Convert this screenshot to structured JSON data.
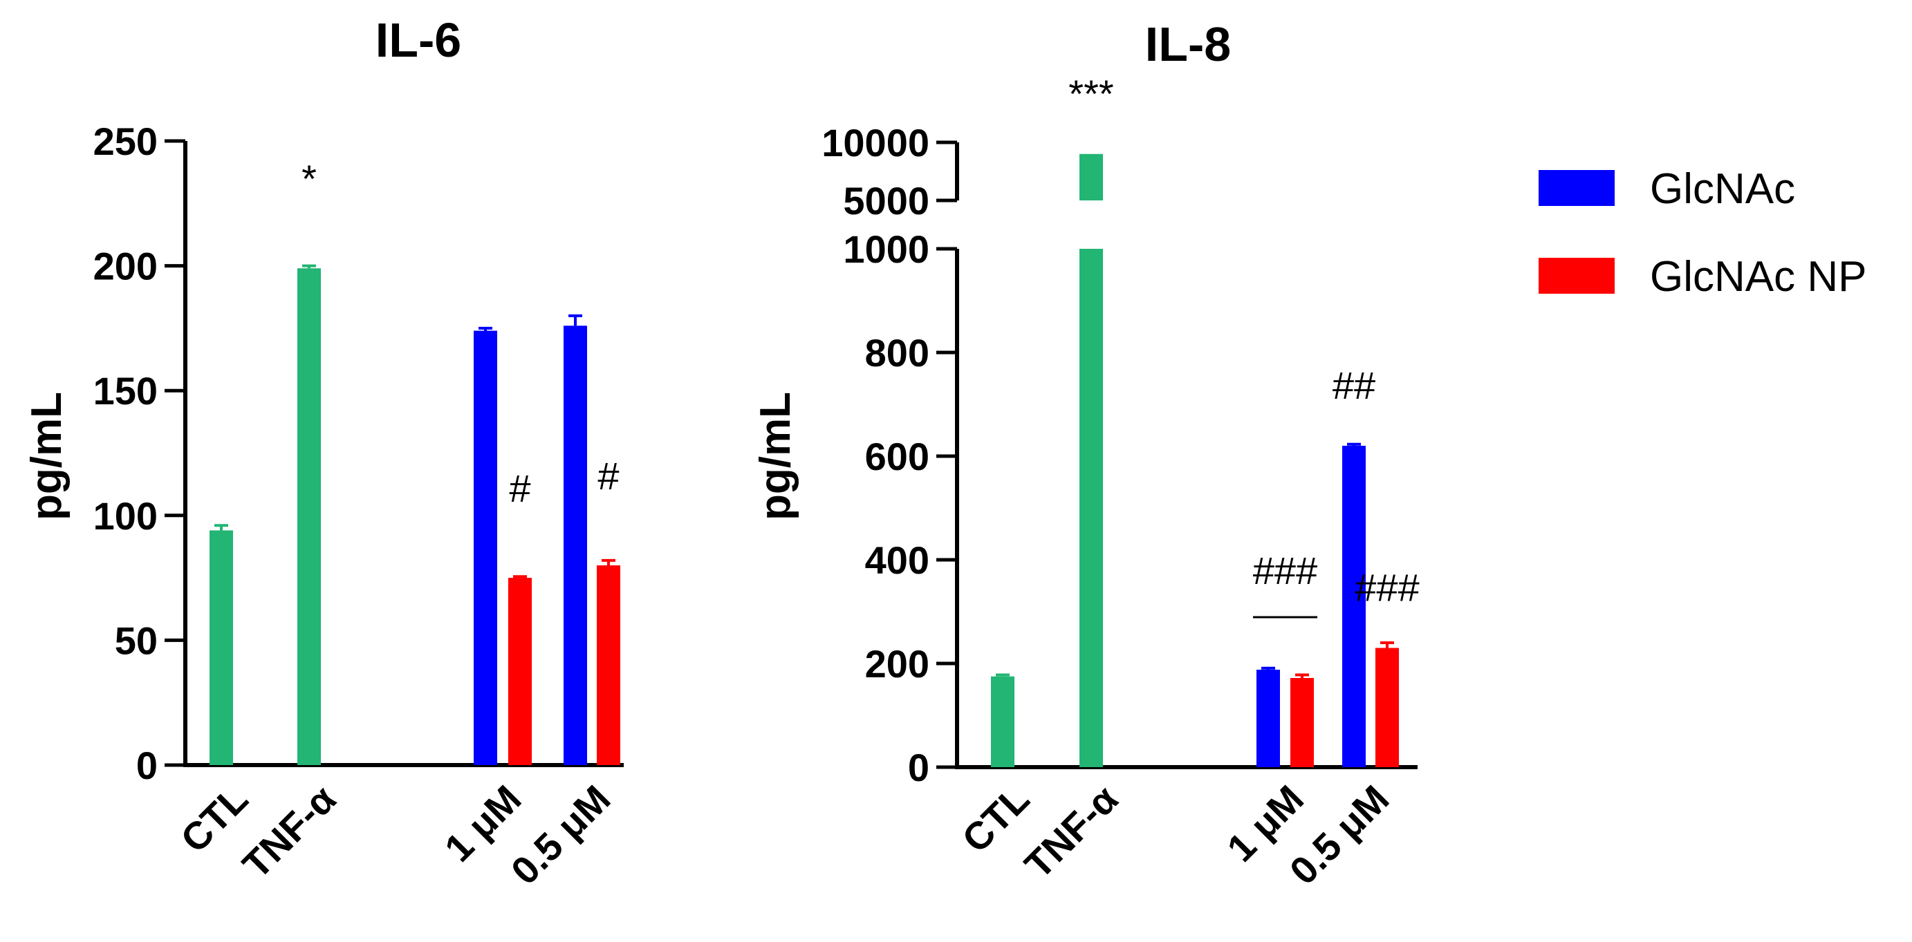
{
  "colors": {
    "control": "#22b573",
    "glcnac": "#0000ff",
    "glcnac_np": "#ff0000",
    "axis": "#000000"
  },
  "legend": {
    "items": [
      {
        "label": "GlcNAc",
        "color": "#0000ff"
      },
      {
        "label": "GlcNAc NP",
        "color": "#ff0000"
      }
    ],
    "placement": "right"
  },
  "chart_data": [
    {
      "type": "bar",
      "title": "IL-6",
      "ylabel": "pg/mL",
      "xlabel": "",
      "ylim": [
        0,
        250
      ],
      "yticks": [
        "0",
        "50",
        "100",
        "150",
        "200",
        "250"
      ],
      "categories": [
        "CTL",
        "TNF-α",
        "1 μM",
        "0.5 μM"
      ],
      "series": [
        {
          "name": "Control",
          "color": "#22b573",
          "values": [
            94,
            199,
            null,
            null
          ],
          "errors": [
            2,
            1,
            null,
            null
          ]
        },
        {
          "name": "GlcNAc",
          "color": "#0000ff",
          "values": [
            null,
            null,
            174,
            176
          ],
          "errors": [
            null,
            null,
            1,
            4
          ]
        },
        {
          "name": "GlcNAc NP",
          "color": "#ff0000",
          "values": [
            null,
            null,
            75,
            80
          ],
          "errors": [
            null,
            null,
            0.5,
            2
          ]
        }
      ],
      "annotations": [
        {
          "text": "*",
          "category": "TNF-α",
          "series": "Control"
        },
        {
          "text": "#",
          "category": "1 μM",
          "series": "GlcNAc NP"
        },
        {
          "text": "#",
          "category": "0.5 μM",
          "series": "GlcNAc NP"
        }
      ]
    },
    {
      "type": "bar",
      "title": "IL-8",
      "ylabel": "pg/mL",
      "xlabel": "",
      "ylim": [
        0,
        10000
      ],
      "axis_break": {
        "from": 1000,
        "to": 5000
      },
      "yticks": [
        "0",
        "200",
        "400",
        "600",
        "800",
        "1000",
        "5000",
        "10000"
      ],
      "categories": [
        "CTL",
        "TNF-α",
        "1 μM",
        "0.5 μM"
      ],
      "series": [
        {
          "name": "Control",
          "color": "#22b573",
          "values": [
            175,
            9000,
            null,
            null
          ],
          "errors": [
            3,
            0,
            null,
            null
          ]
        },
        {
          "name": "GlcNAc",
          "color": "#0000ff",
          "values": [
            null,
            null,
            188,
            620
          ],
          "errors": [
            null,
            null,
            3,
            3
          ]
        },
        {
          "name": "GlcNAc NP",
          "color": "#ff0000",
          "values": [
            null,
            null,
            172,
            230
          ],
          "errors": [
            null,
            null,
            6,
            10
          ]
        }
      ],
      "annotations": [
        {
          "text": "***",
          "category": "TNF-α",
          "series": "Control"
        },
        {
          "text": "###",
          "category": "1 μM",
          "series": "bracket"
        },
        {
          "text": "##",
          "category": "0.5 μM",
          "series": "GlcNAc"
        },
        {
          "text": "###",
          "category": "0.5 μM",
          "series": "GlcNAc NP"
        }
      ]
    }
  ]
}
